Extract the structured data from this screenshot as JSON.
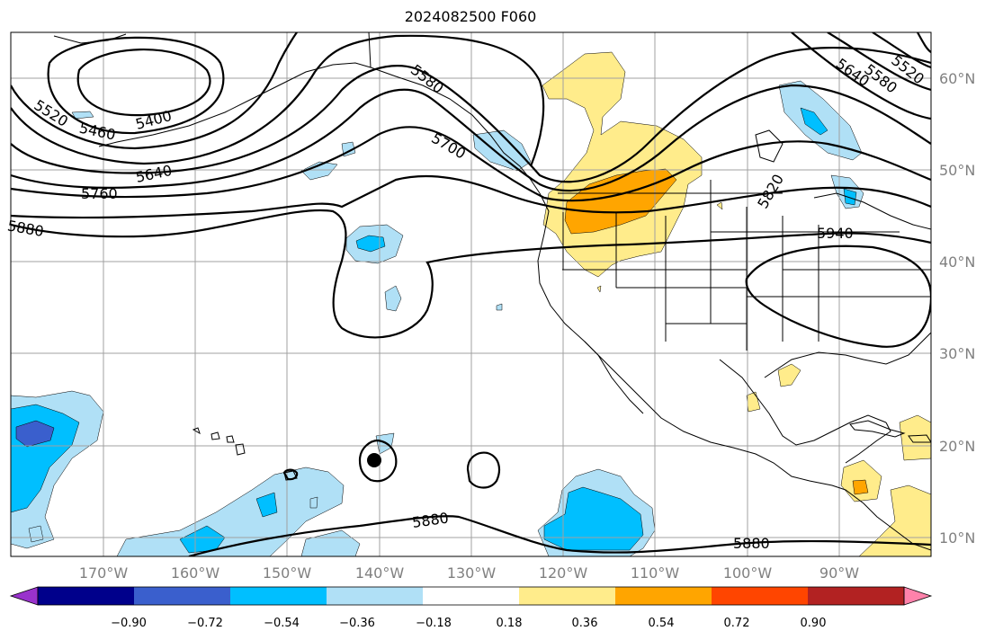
{
  "title": "2024082500 F060",
  "longitude_labels": [
    "170°W",
    "160°W",
    "150°W",
    "140°W",
    "130°W",
    "120°W",
    "110°W",
    "100°W",
    "90°W"
  ],
  "latitude_labels": [
    "60°N",
    "50°N",
    "40°N",
    "30°N",
    "20°N",
    "10°N"
  ],
  "contour_labels": [
    "5400",
    "5460",
    "5520",
    "5580",
    "5640",
    "5700",
    "5760",
    "5820",
    "5880",
    "5940",
    "5520",
    "5580",
    "5640",
    "5880",
    "5880"
  ],
  "colorbar": {
    "tick_labels": [
      "−0.90",
      "−0.72",
      "−0.54",
      "−0.36",
      "−0.18",
      "0.18",
      "0.36",
      "0.54",
      "0.72",
      "0.90"
    ],
    "colors": [
      "#9932cc",
      "#00008b",
      "#3a5fcd",
      "#00bfff",
      "#b0e0f6",
      "#ffffff",
      "#ffec8b",
      "#ffa500",
      "#ff4500",
      "#b22222",
      "#ff82ab"
    ]
  },
  "fill_colors": {
    "light_blue": "#b0e0f6",
    "blue": "#00bfff",
    "medium_blue": "#3a5fcd",
    "yellow": "#ffec8b",
    "orange": "#ffa500"
  }
}
